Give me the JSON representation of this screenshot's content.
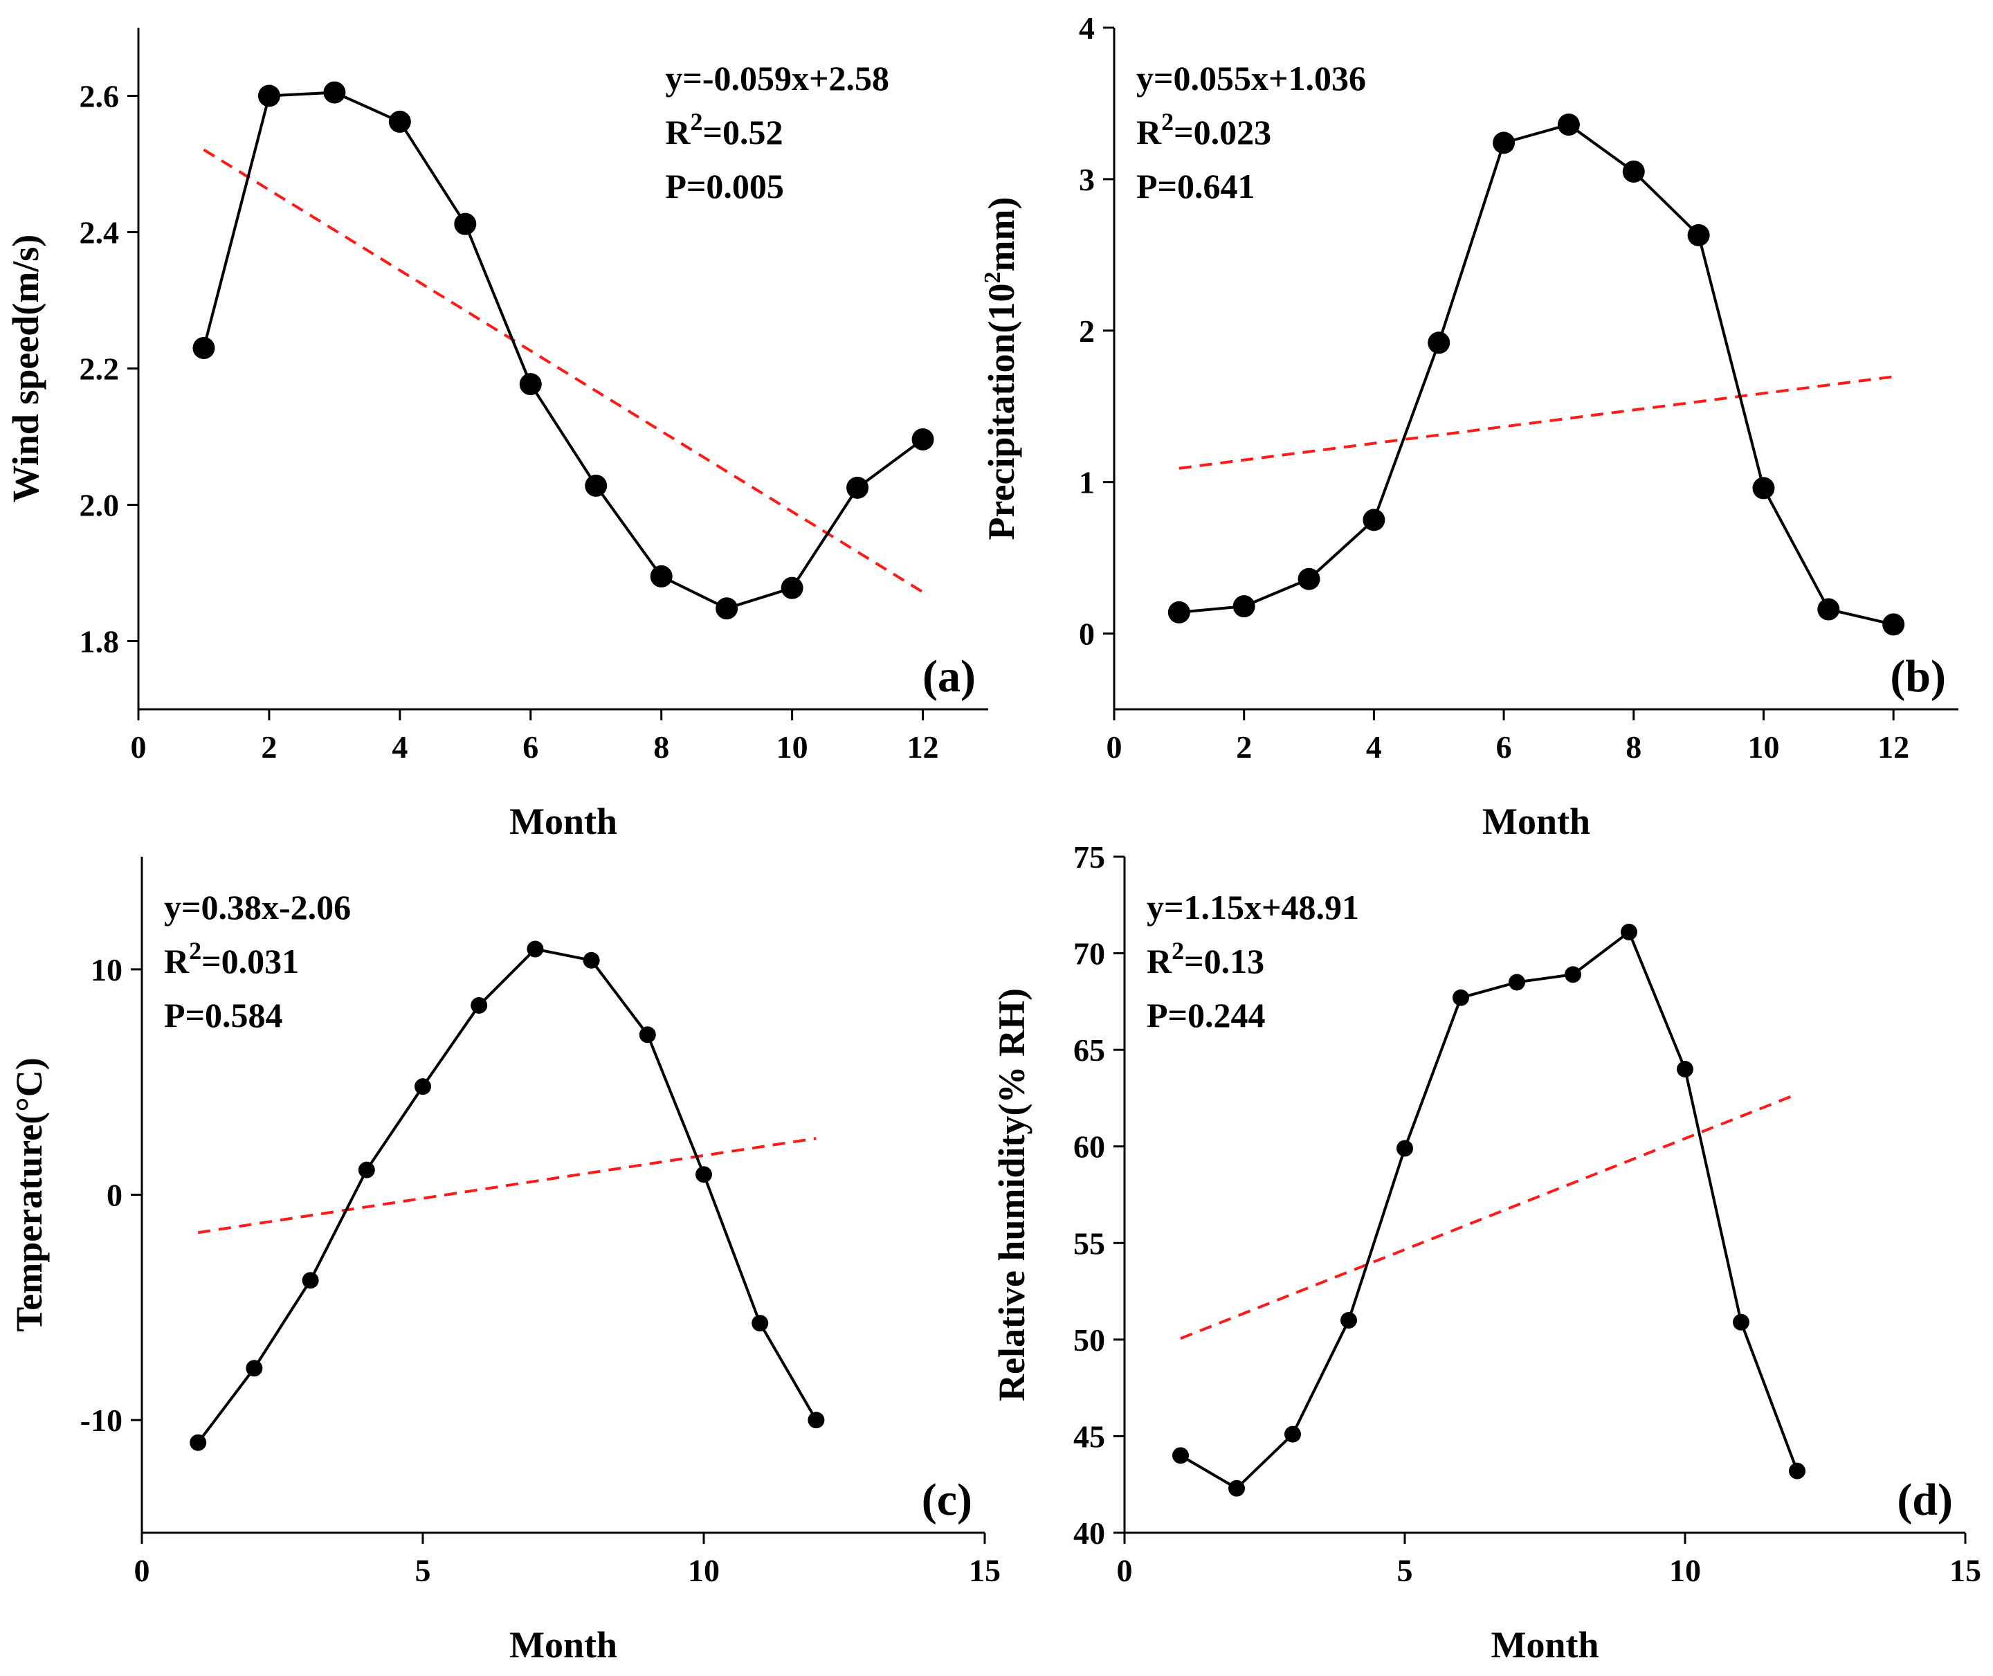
{
  "chart_data": [
    {
      "type": "line",
      "panel": "(a)",
      "xlabel": "Month",
      "ylabel": "Wind speed(m/s)",
      "xlim": [
        0,
        13
      ],
      "ylim": [
        1.7,
        2.7
      ],
      "xticks": [
        0,
        2,
        4,
        6,
        8,
        10,
        12
      ],
      "yticks": [
        1.8,
        2.0,
        2.2,
        2.4,
        2.6
      ],
      "ytick_labels": [
        "1.8",
        "2.0",
        "2.2",
        "2.4",
        "2.6"
      ],
      "x": [
        1,
        2,
        3,
        4,
        5,
        6,
        7,
        8,
        9,
        10,
        11,
        12
      ],
      "values": [
        2.23,
        2.6,
        2.605,
        2.562,
        2.412,
        2.177,
        2.028,
        1.895,
        1.848,
        1.878,
        2.025,
        2.096
      ],
      "trend": {
        "slope": -0.059,
        "intercept": 2.58,
        "x_range": [
          1,
          12
        ]
      },
      "annotations": [
        {
          "pre": "y=-0.059x+2.58"
        },
        {
          "pre": "R",
          "sup": "2",
          "post": "=0.52"
        },
        {
          "pre": "P=0.005"
        }
      ],
      "annotation_position": "top-right",
      "point_radius_scale": "large"
    },
    {
      "type": "line",
      "panel": "(b)",
      "xlabel": "Month",
      "ylabel_pre": "Precipitation(10",
      "ylabel_sup": "2",
      "ylabel_post": "mm)",
      "xlim": [
        0,
        13
      ],
      "ylim": [
        -0.5,
        4
      ],
      "xticks": [
        0,
        2,
        4,
        6,
        8,
        10,
        12
      ],
      "yticks": [
        0,
        1,
        2,
        3,
        4
      ],
      "ytick_labels": [
        "0",
        "1",
        "2",
        "3",
        "4"
      ],
      "x": [
        1,
        2,
        3,
        4,
        5,
        6,
        7,
        8,
        9,
        10,
        11,
        12
      ],
      "values": [
        0.14,
        0.18,
        0.36,
        0.75,
        1.92,
        3.24,
        3.36,
        3.05,
        2.63,
        0.96,
        0.16,
        0.06
      ],
      "trend": {
        "slope": 0.055,
        "intercept": 1.036,
        "x_range": [
          1,
          12
        ]
      },
      "annotations": [
        {
          "pre": "y=0.055x+1.036"
        },
        {
          "pre": "R",
          "sup": "2",
          "post": "=0.023"
        },
        {
          "pre": "P=0.641"
        }
      ],
      "annotation_position": "top-left",
      "point_radius_scale": "large"
    },
    {
      "type": "line",
      "panel": "(c)",
      "xlabel": "Month",
      "ylabel": "Temperature(°C)",
      "xlim": [
        0,
        15
      ],
      "ylim": [
        -15,
        15
      ],
      "xticks": [
        0,
        5,
        10,
        15
      ],
      "yticks": [
        -10,
        0,
        10
      ],
      "ytick_labels": [
        "-10",
        "0",
        "10"
      ],
      "x": [
        1,
        2,
        3,
        4,
        5,
        6,
        7,
        8,
        9,
        10,
        11,
        12
      ],
      "values": [
        -11.0,
        -7.7,
        -3.8,
        1.1,
        4.8,
        8.4,
        10.9,
        10.4,
        7.1,
        0.9,
        -5.7,
        -10.0
      ],
      "trend": {
        "slope": 0.38,
        "intercept": -2.06,
        "x_range": [
          1,
          12
        ]
      },
      "annotations": [
        {
          "pre": "y=0.38x-2.06"
        },
        {
          "pre": "R",
          "sup": "2",
          "post": "=0.031"
        },
        {
          "pre": "P=0.584"
        }
      ],
      "annotation_position": "top-left",
      "point_radius_scale": "small"
    },
    {
      "type": "line",
      "panel": "(d)",
      "xlabel": "Month",
      "ylabel": "Relative humidity(% RH)",
      "xlim": [
        0,
        15
      ],
      "ylim": [
        40,
        75
      ],
      "xticks": [
        0,
        5,
        10,
        15
      ],
      "yticks": [
        40,
        45,
        50,
        55,
        60,
        65,
        70,
        75
      ],
      "ytick_labels": [
        "40",
        "45",
        "50",
        "55",
        "60",
        "65",
        "70",
        "75"
      ],
      "x": [
        1,
        2,
        3,
        4,
        5,
        6,
        7,
        8,
        9,
        10,
        11,
        12
      ],
      "values": [
        44.0,
        42.3,
        45.1,
        51.0,
        59.9,
        67.7,
        68.5,
        68.9,
        71.1,
        64.0,
        50.9,
        43.2
      ],
      "trend": {
        "slope": 1.15,
        "intercept": 48.91,
        "x_range": [
          1,
          12
        ]
      },
      "annotations": [
        {
          "pre": "y=1.15x+48.91"
        },
        {
          "pre": "R",
          "sup": "2",
          "post": "=0.13"
        },
        {
          "pre": "P=0.244"
        }
      ],
      "annotation_position": "top-left",
      "point_radius_scale": "small"
    }
  ],
  "colors": {
    "series": "#000000",
    "trend": "#ff1a1a",
    "axis": "#000000"
  }
}
